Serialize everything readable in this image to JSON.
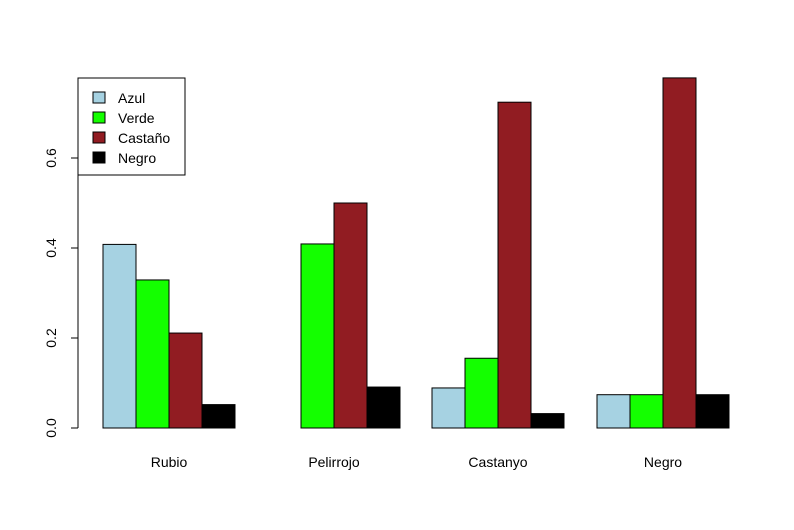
{
  "chart_data": {
    "type": "bar",
    "title": "",
    "xlabel": "",
    "ylabel": "",
    "categories": [
      "Rubio",
      "Pelirrojo",
      "Castanyo",
      "Negro"
    ],
    "series": [
      {
        "name": "Azul",
        "color": "#a6d2e2",
        "values": [
          0.408,
          0.0,
          0.089,
          0.074
        ]
      },
      {
        "name": "Verde",
        "color": "#14ff00",
        "values": [
          0.329,
          0.409,
          0.155,
          0.074
        ]
      },
      {
        "name": "Castaño",
        "color": "#911c22",
        "values": [
          0.211,
          0.5,
          0.724,
          0.778
        ]
      },
      {
        "name": "Negro",
        "color": "#000000",
        "values": [
          0.052,
          0.091,
          0.032,
          0.074
        ]
      }
    ],
    "ylim": [
      0,
      0.78
    ],
    "yticks": [
      0.0,
      0.2,
      0.4,
      0.6
    ],
    "ytick_labels": [
      "0.0",
      "0.2",
      "0.4",
      "0.6"
    ],
    "legend_position": "top-left",
    "grid": false
  }
}
